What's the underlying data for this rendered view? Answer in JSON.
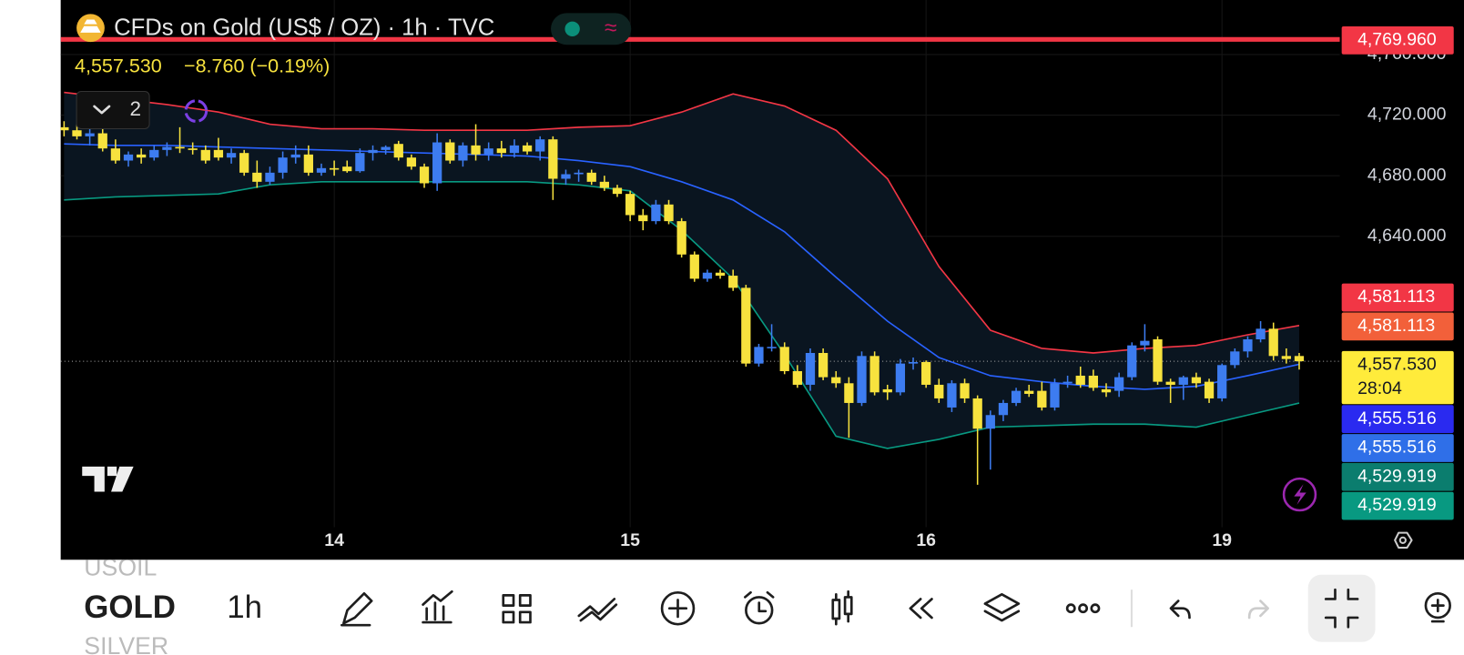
{
  "header": {
    "symbol": "CFDs on Gold (US$ / OZ) · 1h · TVC",
    "last": "4,557.530",
    "change": "−8.760 (−0.19%)",
    "indicators": "2"
  },
  "chart_data": {
    "type": "candlestick",
    "categories": [
      null,
      null,
      null,
      null,
      null,
      null,
      null,
      null,
      null,
      null,
      null,
      null,
      null,
      null,
      null,
      null,
      null,
      null,
      null,
      null,
      null,
      "14",
      null,
      null,
      null,
      null,
      null,
      null,
      null,
      null,
      null,
      null,
      null,
      null,
      null,
      null,
      null,
      null,
      null,
      null,
      null,
      null,
      null,
      null,
      "15",
      null,
      null,
      null,
      null,
      null,
      null,
      null,
      null,
      null,
      null,
      null,
      null,
      null,
      null,
      null,
      null,
      null,
      null,
      null,
      null,
      null,
      null,
      "16",
      null,
      null,
      null,
      null,
      null,
      null,
      null,
      null,
      null,
      null,
      null,
      null,
      null,
      null,
      null,
      null,
      null,
      null,
      null,
      null,
      null,
      null,
      "19",
      null,
      null,
      null,
      null,
      null,
      null
    ],
    "open": [
      4712,
      4710,
      4706,
      4708,
      4698,
      4690,
      4694,
      4692,
      4697,
      4699,
      4698,
      4697,
      4697,
      4692,
      4695,
      4682,
      4676,
      4682,
      4692,
      4694,
      4682,
      4685,
      4686,
      4683,
      4695,
      4697,
      4701,
      4692,
      4686,
      4675,
      4702,
      4690,
      4700,
      4694,
      4698,
      4695,
      4700,
      4696,
      4704,
      4678,
      4681,
      4682,
      4676,
      4672,
      4668,
      4654,
      4650,
      4661,
      4650,
      4628,
      4612,
      4616,
      4614,
      4606,
      4556,
      4567,
      4567,
      4551,
      4542,
      4563,
      4547,
      4543,
      4530,
      4561,
      4539,
      4537,
      4556,
      4557,
      4542,
      4527,
      4543,
      4533,
      4513,
      4522,
      4530,
      4538,
      4538,
      4527,
      4543,
      4548,
      4548,
      4539,
      4538,
      4547,
      4568,
      4572,
      4544,
      4542,
      4547,
      4544,
      4533,
      4555,
      4564,
      4572,
      4579,
      4561,
      4561
    ],
    "high": [
      4716,
      4714,
      4712,
      4712,
      4704,
      4696,
      4698,
      4700,
      4702,
      4712,
      4702,
      4700,
      4705,
      4698,
      4697,
      4690,
      4686,
      4696,
      4700,
      4700,
      4688,
      4690,
      4690,
      4698,
      4700,
      4700,
      4703,
      4694,
      4688,
      4708,
      4704,
      4702,
      4714,
      4702,
      4703,
      4704,
      4702,
      4706,
      4706,
      4684,
      4684,
      4684,
      4680,
      4674,
      4670,
      4658,
      4664,
      4664,
      4652,
      4630,
      4618,
      4618,
      4618,
      4608,
      4569,
      4582,
      4570,
      4555,
      4566,
      4566,
      4551,
      4547,
      4564,
      4564,
      4542,
      4559,
      4560,
      4558,
      4546,
      4545,
      4546,
      4535,
      4525,
      4532,
      4540,
      4542,
      4544,
      4546,
      4548,
      4554,
      4552,
      4543,
      4550,
      4570,
      4582,
      4574,
      4546,
      4548,
      4550,
      4546,
      4556,
      4566,
      4574,
      4584,
      4583,
      4566,
      4563
    ],
    "low": [
      4706,
      4704,
      4700,
      4696,
      4688,
      4686,
      4688,
      4690,
      4693,
      4695,
      4694,
      4688,
      4690,
      4688,
      4680,
      4672,
      4674,
      4678,
      4688,
      4680,
      4680,
      4680,
      4682,
      4682,
      4690,
      4694,
      4690,
      4684,
      4672,
      4670,
      4688,
      4686,
      4690,
      4690,
      4692,
      4692,
      4694,
      4690,
      4664,
      4674,
      4676,
      4674,
      4670,
      4666,
      4650,
      4644,
      4648,
      4648,
      4626,
      4610,
      4610,
      4612,
      4604,
      4554,
      4554,
      4564,
      4549,
      4540,
      4538,
      4545,
      4540,
      4507,
      4528,
      4535,
      4532,
      4535,
      4552,
      4540,
      4530,
      4524,
      4530,
      4476,
      4486,
      4518,
      4528,
      4534,
      4525,
      4525,
      4540,
      4540,
      4538,
      4534,
      4534,
      4545,
      4564,
      4542,
      4530,
      4532,
      4540,
      4530,
      4531,
      4553,
      4560,
      4570,
      4558,
      4556,
      4552
    ],
    "close": [
      4710,
      4706,
      4708,
      4698,
      4690,
      4694,
      4692,
      4697,
      4699,
      4698,
      4697,
      4690,
      4692,
      4695,
      4682,
      4676,
      4682,
      4692,
      4694,
      4682,
      4685,
      4684,
      4683,
      4695,
      4697,
      4699,
      4692,
      4686,
      4675,
      4702,
      4690,
      4700,
      4694,
      4698,
      4695,
      4700,
      4696,
      4704,
      4678,
      4681,
      4682,
      4676,
      4672,
      4668,
      4654,
      4650,
      4661,
      4650,
      4628,
      4612,
      4616,
      4614,
      4606,
      4556,
      4567,
      4567,
      4551,
      4542,
      4563,
      4547,
      4543,
      4530,
      4561,
      4537,
      4537,
      4556,
      4557,
      4542,
      4533,
      4543,
      4533,
      4513,
      4522,
      4530,
      4538,
      4536,
      4527,
      4543,
      4544,
      4542,
      4540,
      4537,
      4547,
      4568,
      4571,
      4544,
      4542,
      4547,
      4543,
      4533,
      4555,
      4564,
      4572,
      4579,
      4561,
      4559,
      4557.53
    ],
    "up_color": "#3d7cf0",
    "down_color": "#f7e23e",
    "bands": {
      "x": [
        0,
        4,
        8,
        12,
        16,
        20,
        24,
        28,
        32,
        36,
        40,
        44,
        48,
        52,
        56,
        60,
        64,
        68,
        72,
        76,
        80,
        84,
        88,
        92,
        96
      ],
      "upper": [
        4735,
        4731,
        4727,
        4722,
        4714,
        4711,
        4711,
        4710,
        4710,
        4710,
        4712,
        4713,
        4722,
        4734,
        4726,
        4710,
        4678,
        4620,
        4578,
        4566,
        4563,
        4566,
        4568,
        4575,
        4581.113
      ],
      "middle": [
        4701,
        4700,
        4700,
        4699,
        4698,
        4697,
        4696,
        4695,
        4694,
        4693,
        4690,
        4686,
        4676,
        4664,
        4643,
        4613,
        4584,
        4560,
        4548,
        4544,
        4541,
        4539,
        4541,
        4548,
        4555.516
      ],
      "lower": [
        4664,
        4666,
        4667,
        4668,
        4674,
        4676,
        4676,
        4676,
        4676,
        4676,
        4674,
        4670,
        4644,
        4612,
        4562,
        4508,
        4500,
        4506,
        4514,
        4515,
        4516,
        4516,
        4514,
        4522,
        4529.919
      ],
      "upper_color": "#f23645",
      "middle_color": "#2962ff",
      "lower_color": "#089981",
      "fill": "#0a1520"
    },
    "ylim": [
      4448,
      4796
    ],
    "yticks": [
      {
        "value": 4760,
        "label": "4,760.000"
      },
      {
        "value": 4720,
        "label": "4,720.000"
      },
      {
        "value": 4680,
        "label": "4,680.000"
      },
      {
        "value": 4640,
        "label": "4,640.000"
      }
    ],
    "grid": true,
    "price_labels": [
      {
        "value": 4769.96,
        "label": "4,769.960",
        "color": "#f23645",
        "line": true
      },
      {
        "value": 4581.113,
        "label": "4,581.113",
        "color": "#f23645"
      },
      {
        "value": 4581.113,
        "label": "4,581.113",
        "color": "#f2603a"
      },
      {
        "value": 4557.53,
        "label": "4,557.530",
        "color": "#ffeb3b",
        "countdown": "28:04",
        "current": true
      },
      {
        "value": 4555.516,
        "label": "4,555.516",
        "color": "#2a2af0"
      },
      {
        "value": 4555.516,
        "label": "4,555.516",
        "color": "#2f6fe8"
      },
      {
        "value": 4529.919,
        "label": "4,529.919",
        "color": "#0b7d6e"
      },
      {
        "value": 4529.919,
        "label": "4,529.919",
        "color": "#089981"
      }
    ]
  },
  "toolbar": {
    "symbols": [
      "USOIL",
      "GOLD",
      "SILVER"
    ],
    "interval": "1h"
  }
}
